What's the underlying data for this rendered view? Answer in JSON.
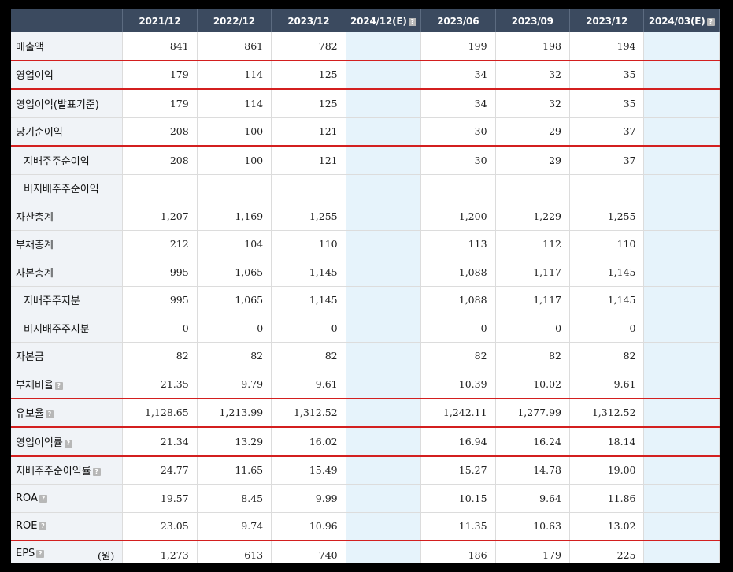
{
  "headers": [
    "2021/12",
    "2022/12",
    "2023/12",
    "2024/12(E)",
    "2023/06",
    "2023/09",
    "2023/12",
    "2024/03(E)"
  ],
  "rows": [
    {
      "label": "매출액",
      "sub": false,
      "help": false,
      "unit": "",
      "redline": true,
      "values": [
        "841",
        "861",
        "782",
        "",
        "199",
        "198",
        "194",
        ""
      ]
    },
    {
      "label": "영업이익",
      "sub": false,
      "help": false,
      "unit": "",
      "redline": true,
      "values": [
        "179",
        "114",
        "125",
        "",
        "34",
        "32",
        "35",
        ""
      ]
    },
    {
      "label": "영업이익(발표기준)",
      "sub": false,
      "help": false,
      "unit": "",
      "redline": false,
      "values": [
        "179",
        "114",
        "125",
        "",
        "34",
        "32",
        "35",
        ""
      ]
    },
    {
      "label": "당기순이익",
      "sub": false,
      "help": false,
      "unit": "",
      "redline": true,
      "values": [
        "208",
        "100",
        "121",
        "",
        "30",
        "29",
        "37",
        ""
      ]
    },
    {
      "label": "지배주주순이익",
      "sub": true,
      "help": false,
      "unit": "",
      "redline": false,
      "values": [
        "208",
        "100",
        "121",
        "",
        "30",
        "29",
        "37",
        ""
      ]
    },
    {
      "label": "비지배주주순이익",
      "sub": true,
      "help": false,
      "unit": "",
      "redline": false,
      "values": [
        "",
        "",
        "",
        "",
        "",
        "",
        "",
        ""
      ]
    },
    {
      "label": "자산총계",
      "sub": false,
      "help": false,
      "unit": "",
      "redline": false,
      "values": [
        "1,207",
        "1,169",
        "1,255",
        "",
        "1,200",
        "1,229",
        "1,255",
        ""
      ]
    },
    {
      "label": "부채총계",
      "sub": false,
      "help": false,
      "unit": "",
      "redline": false,
      "values": [
        "212",
        "104",
        "110",
        "",
        "113",
        "112",
        "110",
        ""
      ]
    },
    {
      "label": "자본총계",
      "sub": false,
      "help": false,
      "unit": "",
      "redline": false,
      "values": [
        "995",
        "1,065",
        "1,145",
        "",
        "1,088",
        "1,117",
        "1,145",
        ""
      ]
    },
    {
      "label": "지배주주지분",
      "sub": true,
      "help": false,
      "unit": "",
      "redline": false,
      "values": [
        "995",
        "1,065",
        "1,145",
        "",
        "1,088",
        "1,117",
        "1,145",
        ""
      ]
    },
    {
      "label": "비지배주주지분",
      "sub": true,
      "help": false,
      "unit": "",
      "redline": false,
      "values": [
        "0",
        "0",
        "0",
        "",
        "0",
        "0",
        "0",
        ""
      ]
    },
    {
      "label": "자본금",
      "sub": false,
      "help": false,
      "unit": "",
      "redline": false,
      "values": [
        "82",
        "82",
        "82",
        "",
        "82",
        "82",
        "82",
        ""
      ]
    },
    {
      "label": "부채비율",
      "sub": false,
      "help": true,
      "unit": "",
      "redline": true,
      "values": [
        "21.35",
        "9.79",
        "9.61",
        "",
        "10.39",
        "10.02",
        "9.61",
        ""
      ]
    },
    {
      "label": "유보율",
      "sub": false,
      "help": true,
      "unit": "",
      "redline": true,
      "values": [
        "1,128.65",
        "1,213.99",
        "1,312.52",
        "",
        "1,242.11",
        "1,277.99",
        "1,312.52",
        ""
      ]
    },
    {
      "label": "영업이익률",
      "sub": false,
      "help": true,
      "unit": "",
      "redline": true,
      "values": [
        "21.34",
        "13.29",
        "16.02",
        "",
        "16.94",
        "16.24",
        "18.14",
        ""
      ]
    },
    {
      "label": "지배주주순이익률",
      "sub": false,
      "help": true,
      "unit": "",
      "redline": false,
      "values": [
        "24.77",
        "11.65",
        "15.49",
        "",
        "15.27",
        "14.78",
        "19.00",
        ""
      ]
    },
    {
      "label": "ROA",
      "sub": false,
      "help": true,
      "unit": "",
      "redline": false,
      "values": [
        "19.57",
        "8.45",
        "9.99",
        "",
        "10.15",
        "9.64",
        "11.86",
        ""
      ]
    },
    {
      "label": "ROE",
      "sub": false,
      "help": true,
      "unit": "",
      "redline": true,
      "values": [
        "23.05",
        "9.74",
        "10.96",
        "",
        "11.35",
        "10.63",
        "13.02",
        ""
      ]
    },
    {
      "label": "EPS",
      "sub": false,
      "help": true,
      "unit": "(원)",
      "redline": false,
      "values": [
        "1,273",
        "613",
        "740",
        "",
        "186",
        "179",
        "225",
        ""
      ]
    }
  ],
  "help_glyph": "?"
}
